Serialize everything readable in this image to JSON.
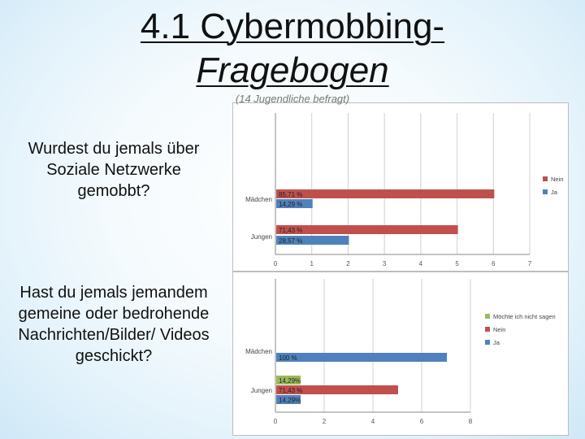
{
  "slide": {
    "title_line1": "4.1 Cybermobbing-",
    "title_line2": "Fragebogen",
    "subtitle": "(14 Jugendliche befragt)",
    "question1": "Wurdest du jemals über Soziale Netzwerke gemobbt?",
    "question2": "Hast du jemals jemandem gemeine oder bedrohende Nachrichten/Bilder/ Videos geschickt?"
  },
  "chart_data": [
    {
      "type": "bar",
      "orientation": "horizontal",
      "categories": [
        "Mädchen",
        "Jungen"
      ],
      "series": [
        {
          "name": "Nein",
          "values": [
            6,
            5
          ],
          "labels": [
            "85,71 %",
            "71,43 %"
          ],
          "color": "#c0504d"
        },
        {
          "name": "Ja",
          "values": [
            1,
            2
          ],
          "labels": [
            "14,29 %",
            "28,57 %"
          ],
          "color": "#4f81bd"
        }
      ],
      "xlim": [
        0,
        7
      ],
      "xticks": [
        "0",
        "1",
        "2",
        "3",
        "4",
        "5",
        "6",
        "7"
      ],
      "legend_position": "right",
      "grid": true
    },
    {
      "type": "bar",
      "orientation": "horizontal",
      "categories": [
        "Mädchen",
        "Jungen"
      ],
      "series": [
        {
          "name": "Möchte ich nicht sagen",
          "values": [
            0,
            1
          ],
          "labels": [
            "",
            "14,29%"
          ],
          "color": "#9bbb59"
        },
        {
          "name": "Nein",
          "values": [
            0,
            5
          ],
          "labels": [
            "",
            "71,43 %"
          ],
          "color": "#c0504d"
        },
        {
          "name": "Ja",
          "values": [
            7,
            1
          ],
          "labels": [
            "100 %",
            "14,29%"
          ],
          "color": "#4f81bd"
        }
      ],
      "xlim": [
        0,
        8
      ],
      "xticks": [
        "0",
        "2",
        "4",
        "6",
        "8"
      ],
      "legend_position": "right",
      "grid": true
    }
  ]
}
